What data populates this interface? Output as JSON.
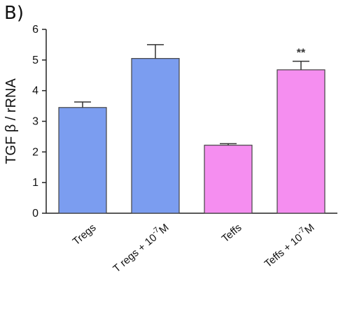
{
  "panel_label": "B)",
  "chart_data": {
    "type": "bar",
    "title": "",
    "ylabel": "TGF β / rRNA",
    "xlabel": "",
    "ylim": [
      0,
      6
    ],
    "yticks": [
      0,
      1,
      2,
      3,
      4,
      5,
      6
    ],
    "grid": false,
    "categories": [
      {
        "label": "Tregs",
        "superscript": ""
      },
      {
        "label": "T regs + 10",
        "superscript": "-7",
        "suffix": "M"
      },
      {
        "label": "Teffs",
        "superscript": ""
      },
      {
        "label": "Teffs + 10",
        "superscript": "-7",
        "suffix": "M"
      }
    ],
    "values": [
      3.45,
      5.05,
      2.22,
      4.68
    ],
    "errors": [
      0.18,
      0.45,
      0.05,
      0.28
    ],
    "colors": [
      "#7b9df0",
      "#7b9df0",
      "#f58ef0",
      "#f58ef0"
    ],
    "annotations": [
      "",
      "",
      "",
      "**"
    ]
  }
}
